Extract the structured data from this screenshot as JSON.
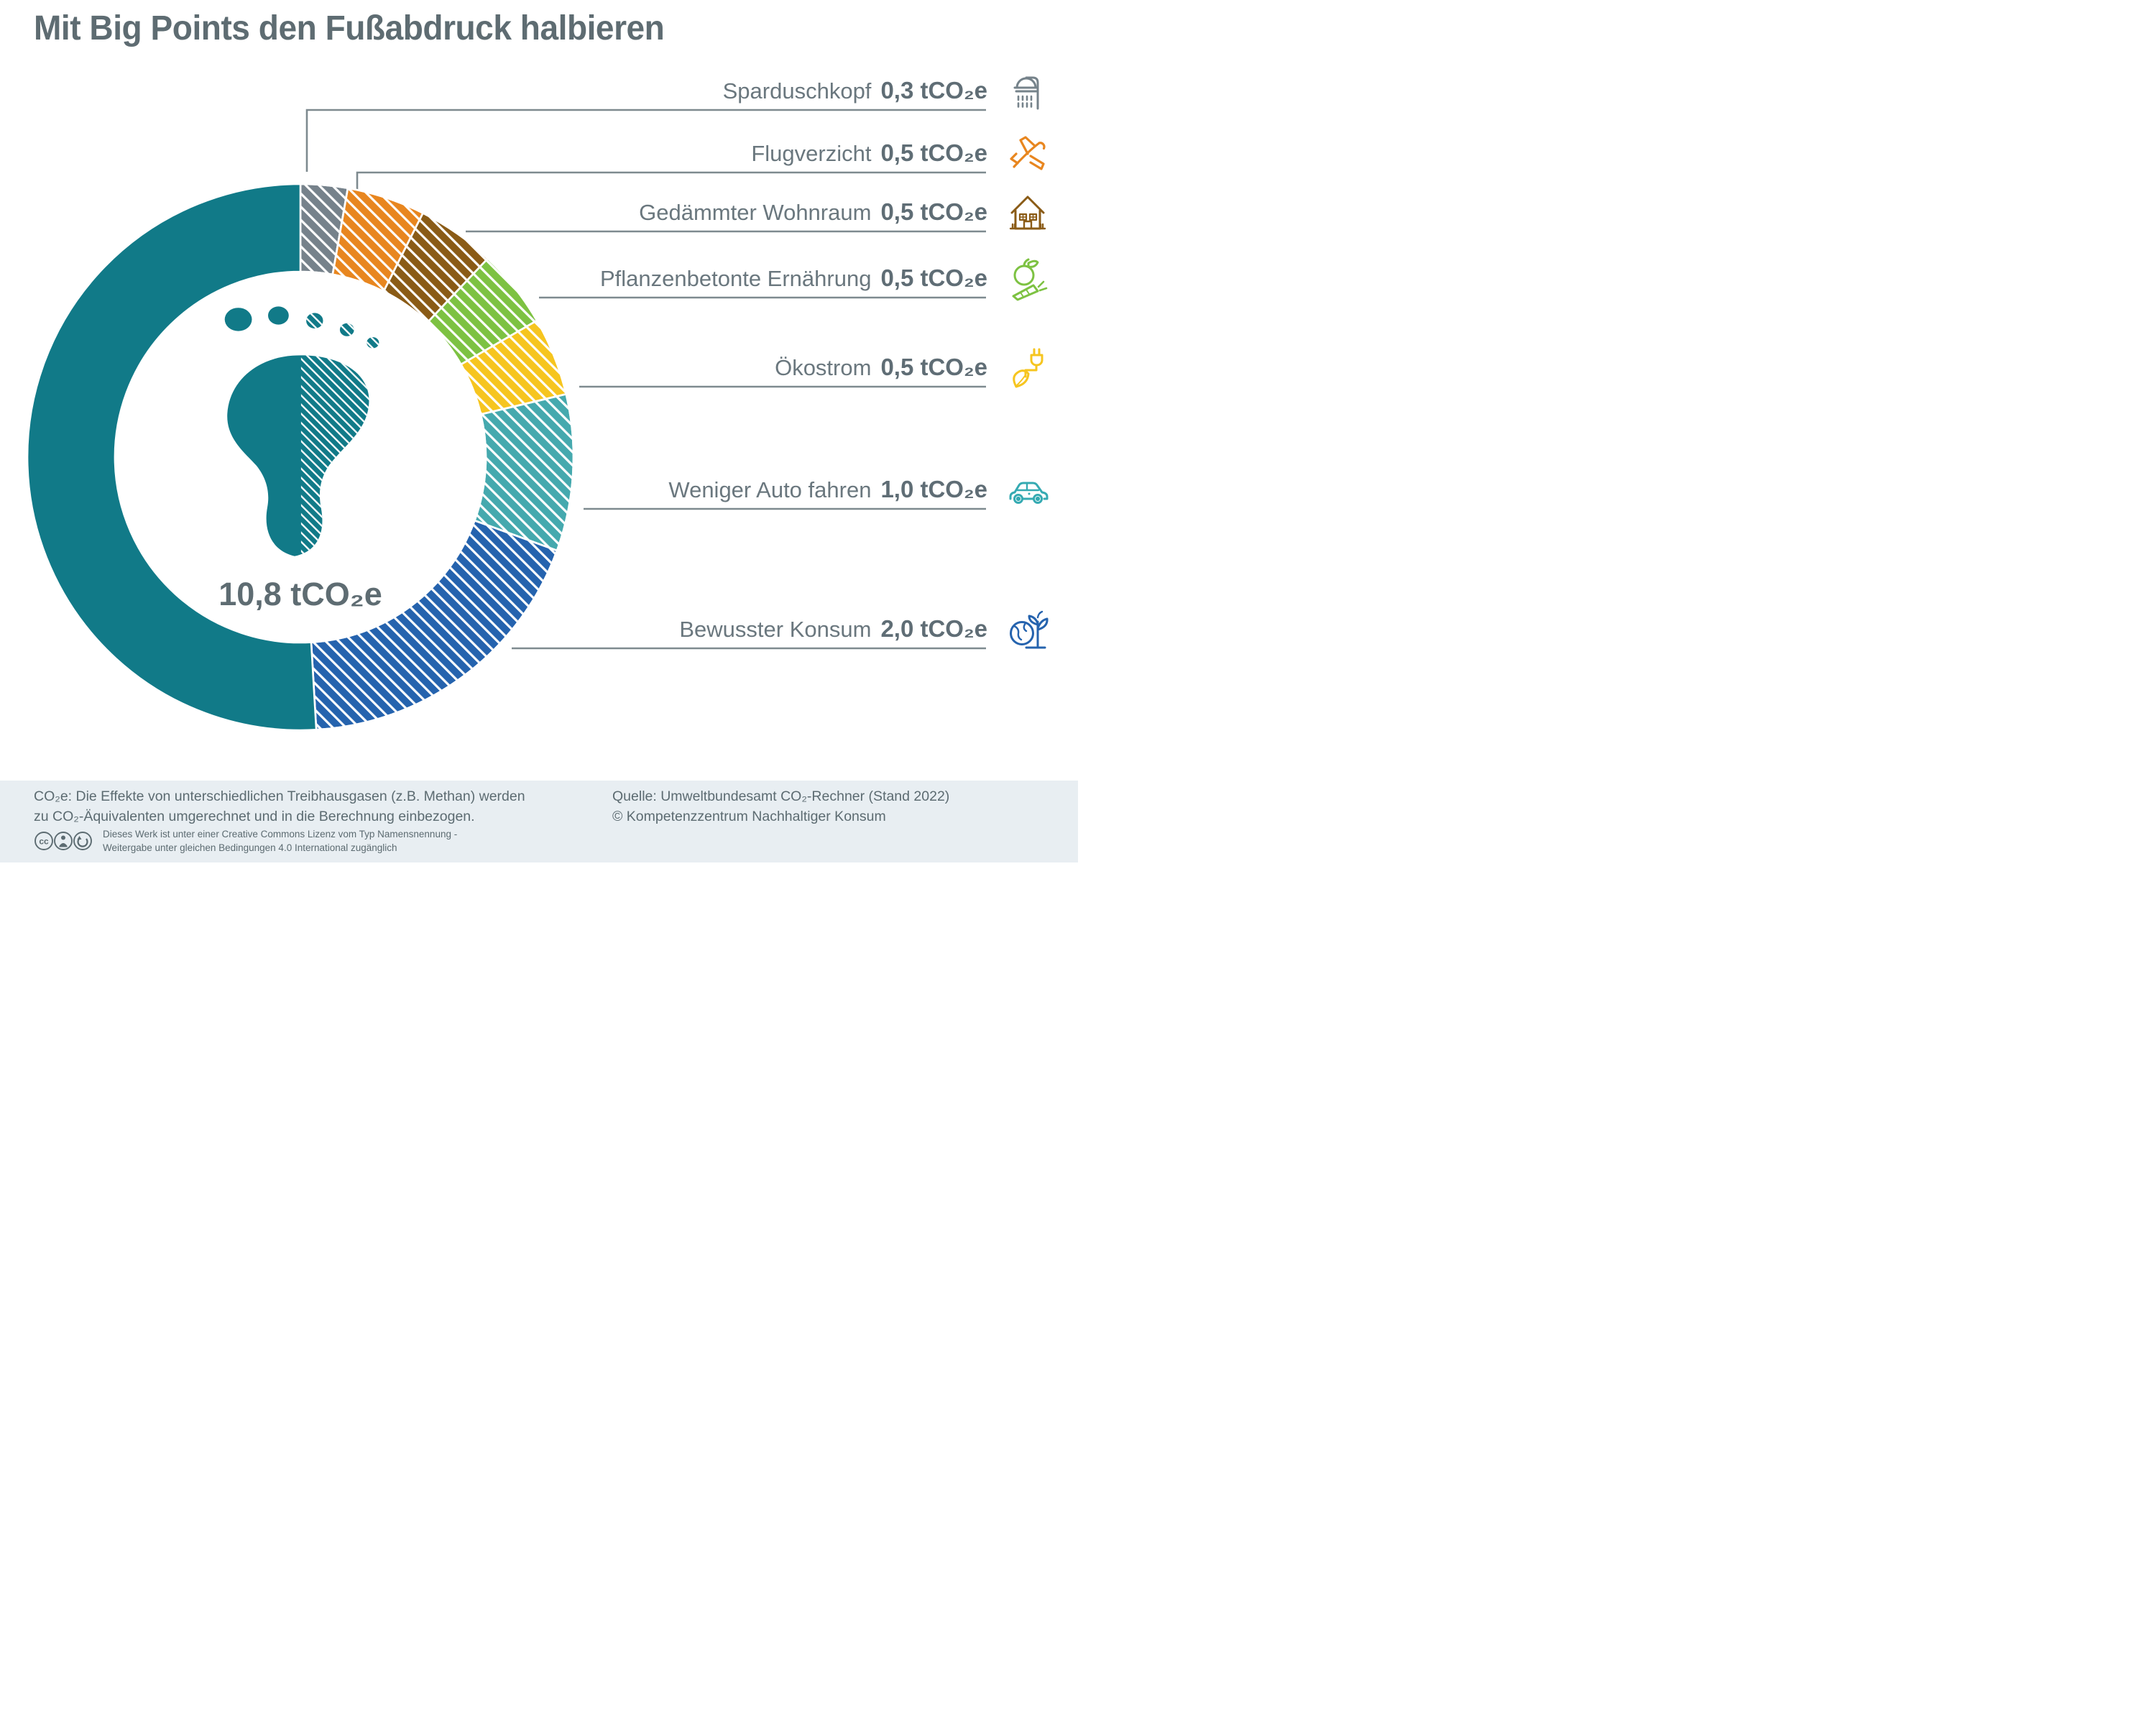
{
  "title": "Mit Big Points den Fußabdruck halbieren",
  "chart_data": {
    "type": "pie",
    "variant": "donut",
    "title": "Mit Big Points den Fußabdruck halbieren",
    "unit": "tCO₂e",
    "center_total_value": 10.8,
    "center_display": "10,8 tCO₂e",
    "legend_position": "right",
    "hatched_meaning": "reduction potential (Big Points)",
    "segments": [
      {
        "label": "Sparduschkopf",
        "value": 0.3,
        "display": "0,3",
        "color": "#76828B",
        "hatched": true,
        "icon": "shower-icon"
      },
      {
        "label": "Flugverzicht",
        "value": 0.5,
        "display": "0,5",
        "color": "#E8861F",
        "hatched": true,
        "icon": "airplane-icon"
      },
      {
        "label": "Gedämmter Wohnraum",
        "value": 0.5,
        "display": "0,5",
        "color": "#8A5B16",
        "hatched": true,
        "icon": "house-icon"
      },
      {
        "label": "Pflanzenbetonte Ernährung",
        "value": 0.5,
        "display": "0,5",
        "color": "#7DC242",
        "hatched": true,
        "icon": "fruit-vegetable-icon"
      },
      {
        "label": "Ökostrom",
        "value": 0.5,
        "display": "0,5",
        "color": "#F6C51F",
        "hatched": true,
        "icon": "plug-leaf-icon"
      },
      {
        "label": "Weniger Auto fahren",
        "value": 1.0,
        "display": "1,0",
        "color": "#45A9AE",
        "hatched": true,
        "icon": "car-icon"
      },
      {
        "label": "Bewusster Konsum",
        "value": 2.0,
        "display": "2,0",
        "color": "#2563AE",
        "hatched": true,
        "icon": "earth-plant-icon"
      },
      {
        "label": "",
        "value": 5.5,
        "display": "",
        "color": "#117A88",
        "hatched": false,
        "icon": ""
      }
    ]
  },
  "footer": {
    "note_line1": "CO₂e: Die Effekte von unterschiedlichen Treibhausgasen (z.B. Methan) werden",
    "note_line2": "zu CO₂-Äquivalenten umgerechnet und in die Berechnung einbezogen.",
    "license_line1": "Dieses Werk ist unter einer Creative Commons Lizenz vom Typ Namensnennung -",
    "license_line2": "Weitergabe unter gleichen Bedingungen 4.0 International zugänglich",
    "source_line1": "Quelle: Umweltbundesamt CO₂-Rechner (Stand 2022)",
    "source_line2": "© Kompetenzzentrum Nachhaltiger Konsum"
  }
}
